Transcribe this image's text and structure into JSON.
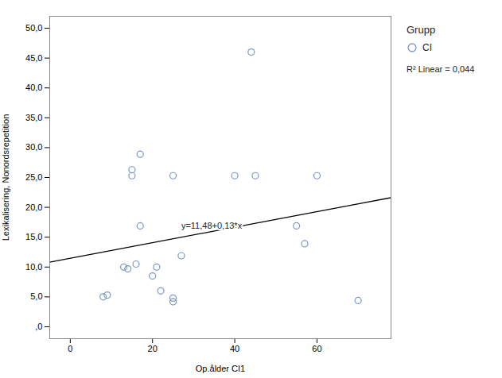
{
  "chart_data": {
    "type": "scatter",
    "xlabel": "Op.ålder CI1",
    "ylabel": "Lexikalisering, Nonordsrepetition",
    "legend_title": "Grupp",
    "legend": "right",
    "series": [
      {
        "name": "CI",
        "type": "scatter",
        "color": "#7b96c8",
        "marker": "circle",
        "x": [
          8,
          9,
          13,
          14,
          15,
          15,
          16,
          17,
          17,
          20,
          21,
          22,
          25,
          25,
          25,
          27,
          40,
          44,
          45,
          55,
          57,
          60,
          70
        ],
        "values": [
          5.0,
          5.3,
          10.0,
          9.7,
          26.3,
          25.3,
          10.5,
          28.9,
          16.9,
          8.5,
          10.0,
          6.0,
          4.8,
          4.2,
          25.3,
          11.9,
          25.3,
          46.0,
          25.3,
          16.9,
          13.9,
          25.3,
          4.4
        ]
      },
      {
        "type": "line",
        "color": "#000000",
        "line_style": "solid",
        "x": [
          -5,
          80
        ],
        "values": [
          10.83,
          21.88
        ]
      }
    ],
    "annotations": [
      {
        "text": "y=11,48+0,13*x",
        "x": 27,
        "y": 16.0
      },
      {
        "text": "R² Linear = 0,044"
      }
    ],
    "xlim": [
      -5,
      78
    ],
    "ylim": [
      -2,
      52
    ],
    "xticks": [
      0,
      20,
      40,
      60
    ],
    "yticks": [
      {
        "value": 0.0,
        "label": ",0"
      },
      {
        "value": 5.0,
        "label": "5,0"
      },
      {
        "value": 10.0,
        "label": "10,0"
      },
      {
        "value": 15.0,
        "label": "15,0"
      },
      {
        "value": 20.0,
        "label": "20,0"
      },
      {
        "value": 25.0,
        "label": "25,0"
      },
      {
        "value": 30.0,
        "label": "30,0"
      },
      {
        "value": 35.0,
        "label": "35,0"
      },
      {
        "value": 40.0,
        "label": "40,0"
      },
      {
        "value": 45.0,
        "label": "45,0"
      },
      {
        "value": 50.0,
        "label": "50,0"
      }
    ],
    "grid": false
  }
}
